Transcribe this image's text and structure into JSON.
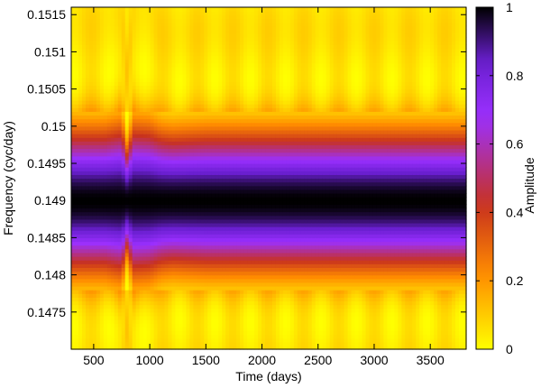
{
  "chart_data": {
    "type": "heatmap",
    "title": "",
    "xlabel": "Time (days)",
    "ylabel": "Frequency (cyc/day)",
    "colorbar_label": "Amplitude",
    "xlim": [
      300,
      3820
    ],
    "ylim": [
      0.147,
      0.1516
    ],
    "clim": [
      0,
      1
    ],
    "x_ticks": [
      500,
      1000,
      1500,
      2000,
      2500,
      3000,
      3500
    ],
    "x_tick_labels": [
      "500",
      "1000",
      "1500",
      "2000",
      "2500",
      "3000",
      "3500"
    ],
    "y_ticks": [
      0.1475,
      0.148,
      0.1485,
      0.149,
      0.1495,
      0.15,
      0.1505,
      0.151,
      0.1515
    ],
    "y_tick_labels": [
      "0.1475",
      "0.148",
      "0.1485",
      "0.149",
      "0.1495",
      "0.15",
      "0.1505",
      "0.151",
      "0.1515"
    ],
    "cbar_ticks": [
      0,
      0.2,
      0.4,
      0.6,
      0.8,
      1
    ],
    "cbar_tick_labels": [
      "0",
      "0.2",
      "0.4",
      "0.6",
      "0.8",
      "1"
    ],
    "colormap": [
      "#ffff00",
      "#ff8c00",
      "#c8321e",
      "#9b30ff",
      "#6a1fd0",
      "#000000"
    ],
    "peak_frequency": 0.149,
    "peak_amplitude": 1,
    "time_axis": [
      350,
      600,
      750,
      800,
      850,
      1000,
      1100,
      1200,
      1500,
      2000,
      2500,
      3000,
      3500,
      3800
    ],
    "peak_width": [
      0.00085,
      0.00085,
      0.0009,
      0.0006,
      0.0009,
      0.00088,
      0.00082,
      0.0008,
      0.00082,
      0.00082,
      0.00082,
      0.00082,
      0.00082,
      0.00082
    ]
  }
}
